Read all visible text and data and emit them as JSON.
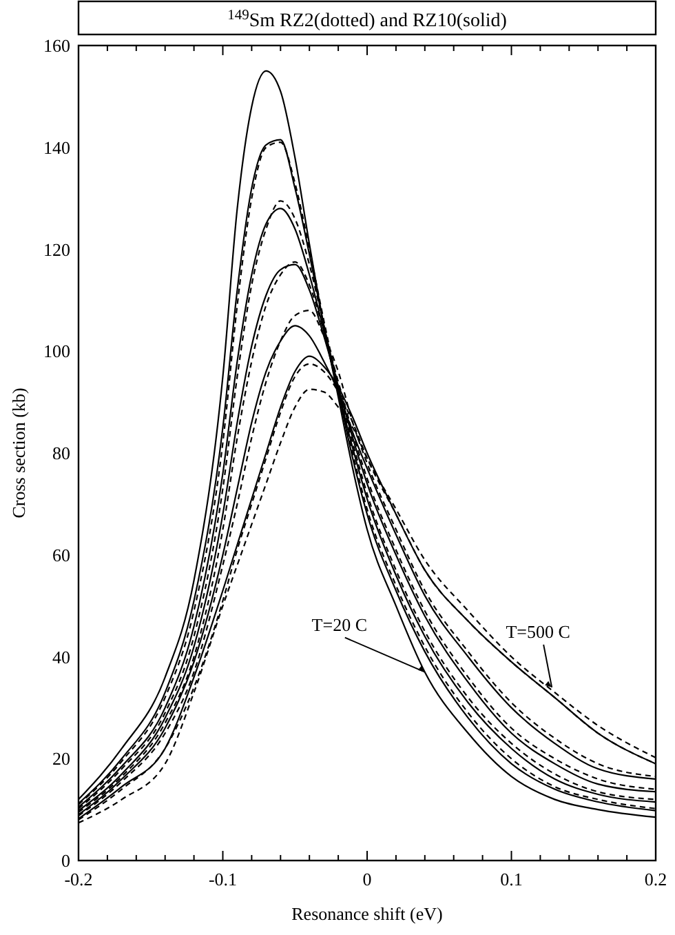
{
  "chart_data": {
    "type": "line",
    "title": "$^{149}$Sm RZ2(dotted) and RZ10(solid)",
    "xlabel": "Resonance shift (eV)",
    "ylabel": "Cross section (kb)",
    "x": [
      -0.2,
      -0.17,
      -0.14,
      -0.12,
      -0.1,
      -0.09,
      -0.08,
      -0.07,
      -0.06,
      -0.05,
      -0.04,
      -0.03,
      -0.02,
      -0.01,
      0,
      0.02,
      0.04,
      0.07,
      0.1,
      0.13,
      0.16,
      0.2
    ],
    "xlim": [
      -0.2,
      0.2
    ],
    "xticks": [
      -0.2,
      {
        "value": -0.18,
        "label": null
      },
      {
        "value": -0.16,
        "label": null
      },
      {
        "value": -0.14,
        "label": null
      },
      {
        "value": -0.12,
        "label": null
      },
      -0.1,
      {
        "value": -0.08,
        "label": null
      },
      {
        "value": -0.06,
        "label": null
      },
      {
        "value": -0.04,
        "label": null
      },
      {
        "value": -0.02,
        "label": null
      },
      0,
      {
        "value": 0.02,
        "label": null
      },
      {
        "value": 0.04,
        "label": null
      },
      {
        "value": 0.06,
        "label": null
      },
      {
        "value": 0.08,
        "label": null
      },
      0.1,
      {
        "value": 0.12,
        "label": null
      },
      {
        "value": 0.14,
        "label": null
      },
      {
        "value": 0.16,
        "label": null
      },
      {
        "value": 0.18,
        "label": null
      },
      0.2
    ],
    "ylim": [
      0,
      160
    ],
    "yticks": [
      0,
      20,
      40,
      60,
      80,
      100,
      120,
      140,
      160
    ],
    "series": [
      {
        "color": "#000000",
        "line_style": "solid",
        "values": [
          12,
          22,
          36,
          55,
          95,
          128,
          148,
          155,
          151,
          138,
          121,
          105,
          91,
          77,
          65,
          50,
          37,
          25,
          16.5,
          12,
          10,
          8.5
        ]
      },
      {
        "color": "#000000",
        "line_style": "solid",
        "values": [
          11.2,
          20,
          33,
          51,
          85,
          112,
          132,
          140.5,
          141.5,
          132,
          119,
          105,
          92,
          79,
          68,
          53,
          41,
          28,
          19,
          14,
          11.5,
          9.8
        ]
      },
      {
        "color": "#000000",
        "line_style": "solid",
        "values": [
          10.5,
          18.5,
          30,
          46,
          76,
          98,
          115,
          125,
          128,
          124,
          115,
          104,
          92,
          81,
          71,
          56,
          44,
          31,
          22,
          16,
          13,
          11.5
        ]
      },
      {
        "color": "#000000",
        "line_style": "solid",
        "values": [
          9.8,
          17,
          28,
          42,
          68,
          86,
          101,
          111,
          116,
          117,
          112,
          103,
          93,
          83,
          74,
          60,
          48,
          35,
          25,
          19,
          15,
          13.5
        ]
      },
      {
        "color": "#000000",
        "line_style": "solid",
        "values": [
          9,
          16,
          26,
          39,
          60,
          73,
          86,
          96,
          102,
          105,
          103,
          98,
          92,
          84,
          77,
          64,
          52,
          40,
          30,
          23,
          18,
          16
        ]
      },
      {
        "color": "#000000",
        "line_style": "solid",
        "values": [
          8.2,
          14.5,
          22,
          36,
          53,
          62,
          71,
          80,
          89,
          96,
          99,
          97,
          93,
          87,
          80,
          68,
          57,
          47,
          39,
          32,
          25,
          19
        ]
      },
      {
        "color": "#000000",
        "line_style": "dashed",
        "values": [
          11,
          19.5,
          32,
          49,
          82,
          109,
          130,
          140,
          141,
          133,
          120,
          106,
          93,
          80,
          69,
          54,
          42,
          29,
          20,
          14.5,
          12,
          10.2
        ]
      },
      {
        "color": "#000000",
        "line_style": "dashed",
        "values": [
          10.2,
          18,
          29,
          44,
          73,
          95,
          113,
          124,
          129.5,
          126,
          117,
          105,
          93,
          82,
          72,
          57,
          45,
          32,
          23,
          17,
          13.5,
          12
        ]
      },
      {
        "color": "#000000",
        "line_style": "dashed",
        "values": [
          9.5,
          16.5,
          27,
          40,
          65,
          83,
          98,
          109,
          115,
          117.5,
          113,
          104,
          94,
          84,
          75,
          61,
          49,
          36,
          26,
          20,
          16,
          14
        ]
      },
      {
        "color": "#000000",
        "line_style": "dashed",
        "values": [
          8.8,
          15.5,
          25,
          37,
          58,
          70,
          83,
          94,
          102,
          107,
          108,
          103,
          96,
          86,
          78,
          65,
          53,
          41,
          31,
          24,
          19,
          16.5
        ]
      },
      {
        "color": "#000000",
        "line_style": "dashed",
        "values": [
          8,
          14,
          22,
          34,
          51,
          61,
          70,
          79,
          88,
          95,
          97.5,
          96,
          92,
          86,
          79,
          68,
          57,
          47,
          39,
          32,
          25,
          19
        ]
      },
      {
        "color": "#000000",
        "line_style": "dashed",
        "values": [
          7.4,
          12,
          19,
          33,
          50,
          58,
          66,
          74,
          82,
          89,
          92.5,
          92,
          89,
          85,
          79,
          69,
          59,
          49,
          40,
          33,
          26.5,
          20.2
        ]
      }
    ],
    "annotations": [
      {
        "text": "T=20 C",
        "x": 0.04,
        "y": 37
      },
      {
        "text": "T=500 C",
        "x": 0.128,
        "y": 34
      }
    ]
  }
}
